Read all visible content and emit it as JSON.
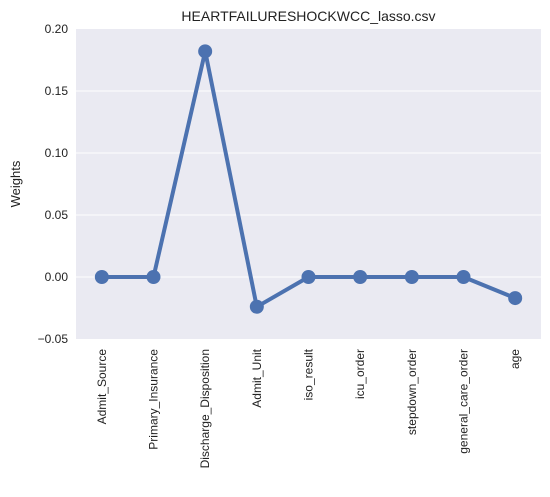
{
  "chart_data": {
    "type": "line",
    "title": "HEARTFAILURESHOCKWCC_lasso.csv",
    "xlabel": "",
    "ylabel": "Weights",
    "categories": [
      "Admit_Source",
      "Primary_Insurance",
      "Discharge_Disposition",
      "Admit_Unit",
      "iso_result",
      "icu_order",
      "stepdown_order",
      "general_care_order",
      "age"
    ],
    "series": [
      {
        "values": [
          0.0,
          0.0,
          0.182,
          -0.024,
          0.0,
          0.0,
          0.0,
          0.0,
          -0.017
        ]
      }
    ],
    "ylim": [
      -0.05,
      0.2
    ],
    "yticks": [
      "0.20",
      "0.15",
      "0.10",
      "0.05",
      "0.00",
      "−0.05"
    ],
    "ytick_values": [
      0.2,
      0.15,
      0.1,
      0.05,
      0.0,
      -0.05
    ],
    "grid": true,
    "colors": {
      "background": "#EAEAF2",
      "grid": "#FFFFFF",
      "line": "#4C72B0"
    }
  }
}
